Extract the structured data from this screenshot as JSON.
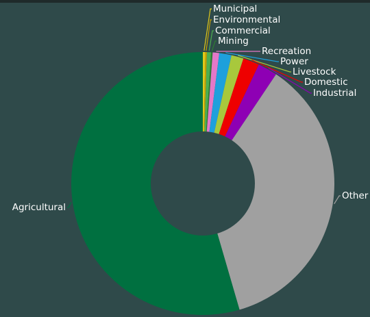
{
  "chart_data": {
    "type": "pie",
    "donut": true,
    "categories": [
      "Municipal",
      "Environmental",
      "Commercial",
      "Mining",
      "Recreation",
      "Power",
      "Livestock",
      "Domestic",
      "Industrial",
      "Other",
      "Agricultural"
    ],
    "values": [
      0.3,
      0.2,
      0.5,
      0.2,
      0.8,
      1.5,
      1.5,
      2.0,
      2.4,
      36.1,
      54.5
    ],
    "colors": [
      "#e0c81a",
      "#c8a000",
      "#4caf50",
      "#2e7d32",
      "#e478c8",
      "#1ea0dc",
      "#a8c83c",
      "#ee0000",
      "#8e00b4",
      "#a0a0a0",
      "#007040"
    ],
    "title": "",
    "legend": "none"
  }
}
